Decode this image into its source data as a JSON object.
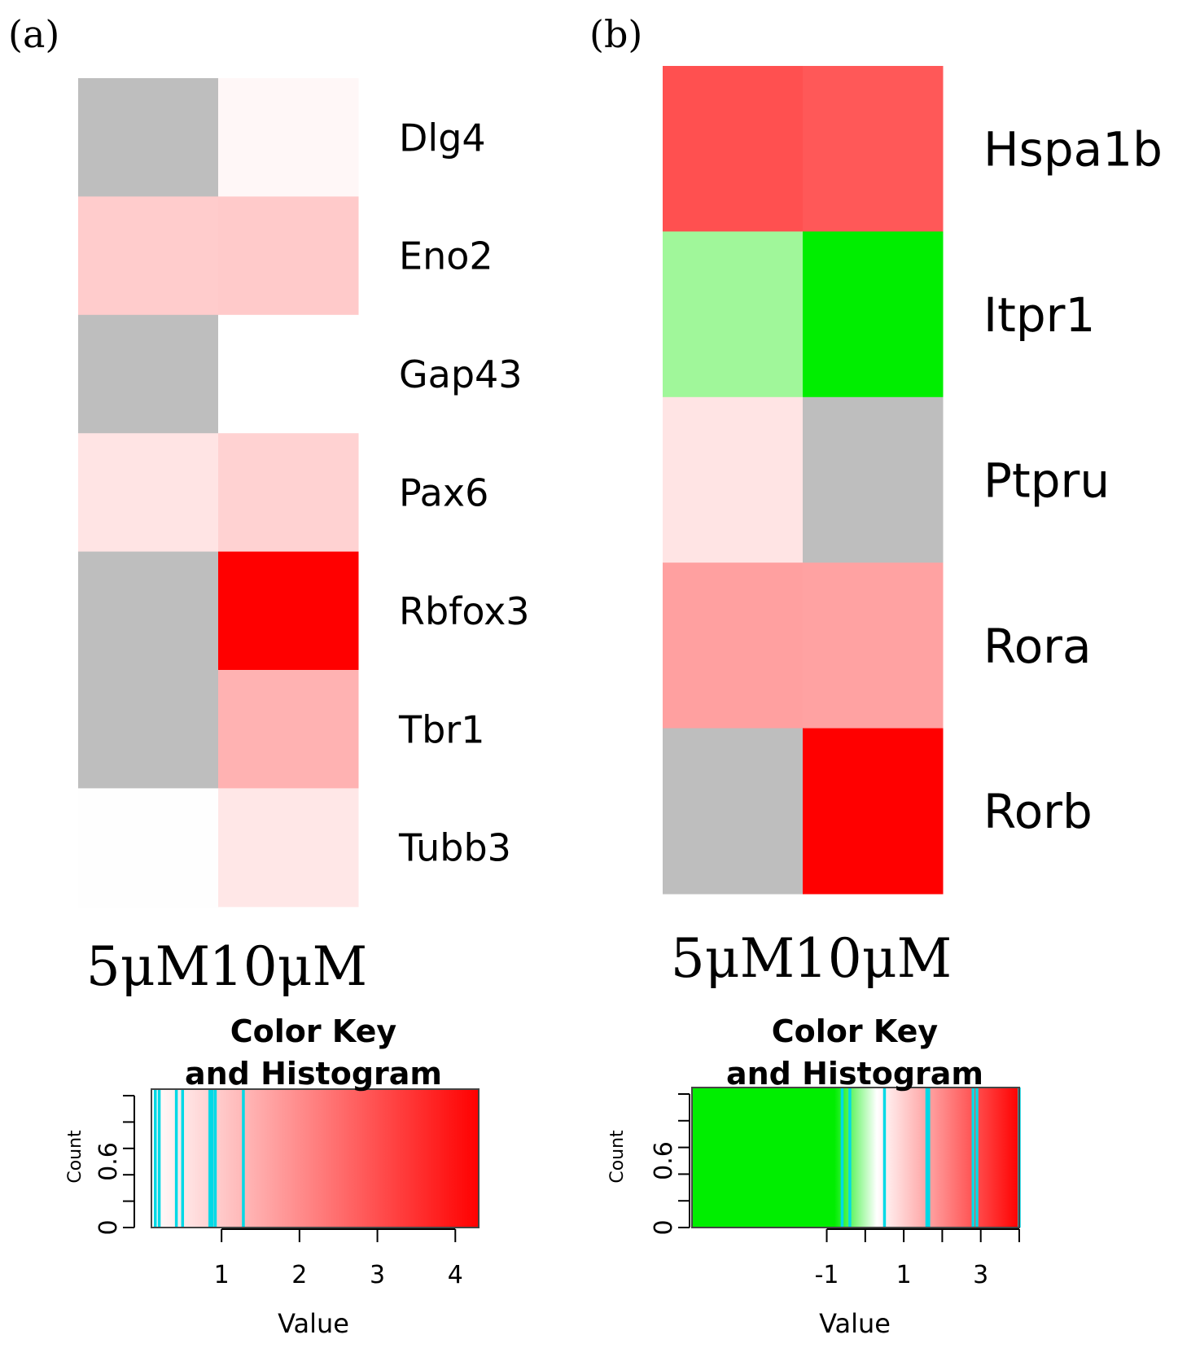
{
  "chart_data": [
    {
      "type": "heatmap",
      "panel_label": "(a)",
      "columns": [
        "5μM",
        "10μM"
      ],
      "rows": [
        "Dlg4",
        "Eno2",
        "Gap43",
        "Pax6",
        "Rbfox3",
        "Tbr1",
        "Tubb3"
      ],
      "cell_colors": [
        [
          "#bebebe",
          "#fff7f7"
        ],
        [
          "#ffcccc",
          "#ffcaca"
        ],
        [
          "#bebebe",
          "#ffffff"
        ],
        [
          "#ffe4e4",
          "#ffd2d2"
        ],
        [
          "#bebebe",
          "#ff0000"
        ],
        [
          "#bebebe",
          "#ffb2b2"
        ],
        [
          "#fefefe",
          "#ffe7e7"
        ]
      ],
      "missing_color": "#bebebe",
      "color_key": {
        "title": "Color Key",
        "subtitle": "and Histogram",
        "xlabel": "Value",
        "ylabel": "Count",
        "xlim": [
          0.1,
          4.3
        ],
        "xticks": [
          1,
          2,
          3,
          4
        ],
        "yticks": [
          0,
          0.6
        ],
        "gradient": [
          "#ffffff",
          "#ff0000"
        ],
        "histogram_lines": [
          0.15,
          0.2,
          0.42,
          0.5,
          0.85,
          0.88,
          0.92,
          1.28
        ]
      }
    },
    {
      "type": "heatmap",
      "panel_label": "(b)",
      "columns": [
        "5μM",
        "10μM"
      ],
      "rows": [
        "Hspa1b",
        "Itpr1",
        "Ptpru",
        "Rora",
        "Rorb"
      ],
      "cell_colors": [
        [
          "#ff5050",
          "#ff5858"
        ],
        [
          "#a0f79a",
          "#00ee00"
        ],
        [
          "#ffe4e4",
          "#bebebe"
        ],
        [
          "#ffa0a0",
          "#ffa2a2"
        ],
        [
          "#bebebe",
          "#ff0000"
        ]
      ],
      "missing_color": "#bebebe",
      "color_key": {
        "title": "Color Key",
        "subtitle": "and Histogram",
        "xlabel": "Value",
        "ylabel": "Count",
        "xlim": [
          -4.5,
          4
        ],
        "xticks": [
          -1,
          1,
          3
        ],
        "minor_xticks": [
          -1,
          0,
          1,
          2,
          3,
          4
        ],
        "yticks": [
          0,
          0.6
        ],
        "gradient": [
          "#00ee00",
          "#ffffff",
          "#ff0000"
        ],
        "gradient_stops": [
          -0.8,
          0.3,
          4
        ],
        "histogram_lines": [
          -0.6,
          -0.4,
          0.5,
          1.6,
          1.65,
          2.8,
          2.9,
          4
        ]
      }
    }
  ]
}
